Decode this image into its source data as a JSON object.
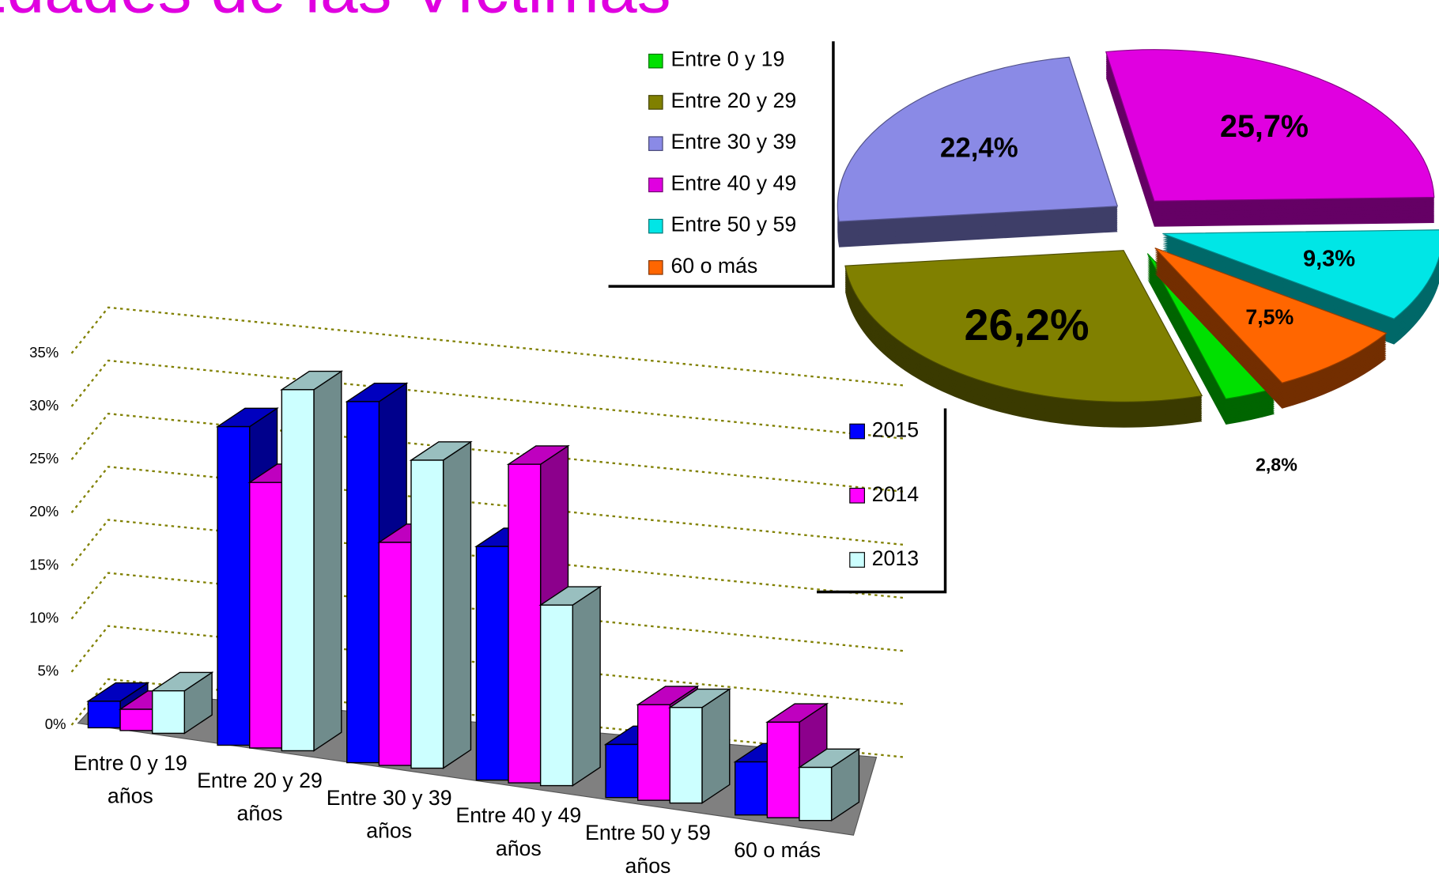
{
  "title": "Edades de las Víctimas",
  "chart_data": [
    {
      "type": "bar3d",
      "categories": [
        "Entre 0 y 19 años",
        "Entre 20 y 29 años",
        "Entre 30 y 39 años",
        "Entre 40 y 49 años",
        "Entre 50 y 59 años",
        "60 o más"
      ],
      "series": [
        {
          "name": "2015",
          "color": "#0000ff",
          "values": [
            2.5,
            30,
            34,
            22,
            5,
            5
          ]
        },
        {
          "name": "2014",
          "color": "#ff00ff",
          "values": [
            2,
            25,
            21,
            30,
            9,
            9
          ]
        },
        {
          "name": "2013",
          "color": "#ccffff",
          "values": [
            4,
            34,
            29,
            17,
            9,
            5
          ]
        }
      ],
      "ylim": [
        0,
        35
      ],
      "yticks": [
        {
          "value": 0,
          "label": "0%"
        },
        {
          "value": 5,
          "label": "5%"
        },
        {
          "value": 10,
          "label": "10%"
        },
        {
          "value": 15,
          "label": "15%"
        },
        {
          "value": 20,
          "label": "20%"
        },
        {
          "value": 25,
          "label": "25%"
        },
        {
          "value": 30,
          "label": "30%"
        },
        {
          "value": 35,
          "label": "35%"
        }
      ],
      "grid": true,
      "legend": "right"
    },
    {
      "type": "pie3d",
      "categories": [
        "Entre 0 y 19",
        "Entre 20 y 29",
        "Entre 30 y 39",
        "Entre 40 y 49",
        "Entre 50 y 59",
        "60 o más"
      ],
      "values": [
        2.8,
        26.2,
        22.4,
        25.7,
        9.3,
        7.5
      ],
      "value_labels": [
        "2,8%",
        "26,2%",
        "22,4%",
        "25,7%",
        "9,3%",
        "7,5%"
      ],
      "colors": [
        "#00e000",
        "#808000",
        "#8a8ae6",
        "#e000e0",
        "#00e6e6",
        "#ff6600"
      ],
      "legend": "left"
    }
  ]
}
